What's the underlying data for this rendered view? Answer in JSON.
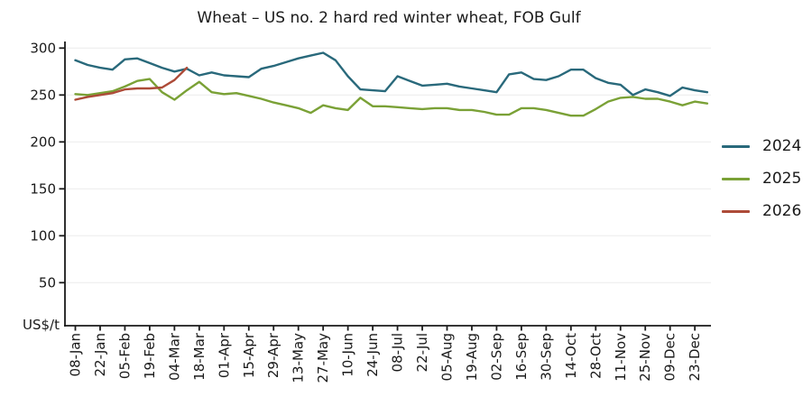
{
  "y_axis_unit_label": "US$/t",
  "colors": {
    "axis": "#1a1a1a",
    "grid": "#f0f0f0",
    "background": "#ffffff",
    "text": "#1a1a1a"
  },
  "chart_data": {
    "type": "line",
    "title": "Wheat – US no. 2 hard red winter wheat, FOB Gulf",
    "ylabel": "US$/t",
    "yticks": [
      50,
      100,
      150,
      200,
      250,
      300
    ],
    "ylim": [
      0,
      307
    ],
    "grid": "horizontal light gridlines at y-ticks",
    "legend_position": "right",
    "x_frequency": "weekly data points, one labeled tick every 2 weeks",
    "x_tick_labels": [
      "08-Jan",
      "22-Jan",
      "05-Feb",
      "19-Feb",
      "04-Mar",
      "18-Mar",
      "01-Apr",
      "15-Apr",
      "29-Apr",
      "13-May",
      "27-May",
      "10-Jun",
      "24-Jun",
      "08-Jul",
      "22-Jul",
      "05-Aug",
      "19-Aug",
      "02-Sep",
      "16-Sep",
      "30-Sep",
      "14-Oct",
      "28-Oct",
      "11-Nov",
      "25-Nov",
      "09-Dec",
      "23-Dec"
    ],
    "series": [
      {
        "name": "2024",
        "color": "#29697b",
        "values": [
          287,
          282,
          279,
          277,
          288,
          289,
          284,
          279,
          275,
          278,
          271,
          274,
          271,
          270,
          269,
          278,
          281,
          285,
          289,
          292,
          295,
          287,
          270,
          256,
          255,
          254,
          270,
          265,
          260,
          261,
          262,
          259,
          257,
          255,
          253,
          272,
          274,
          267,
          266,
          270,
          277,
          277,
          268,
          263,
          261,
          250,
          256,
          253,
          249,
          258,
          255,
          253
        ]
      },
      {
        "name": "2025",
        "color": "#7aa136",
        "values": [
          251,
          250,
          252,
          254,
          259,
          265,
          267,
          253,
          245,
          255,
          264,
          253,
          251,
          252,
          249,
          246,
          242,
          239,
          236,
          231,
          239,
          236,
          234,
          247,
          238,
          238,
          237,
          236,
          235,
          236,
          236,
          234,
          234,
          232,
          229,
          229,
          236,
          236,
          234,
          231,
          228,
          228,
          235,
          243,
          247,
          248,
          246,
          246,
          243,
          239,
          243,
          241
        ]
      },
      {
        "name": "2026",
        "color": "#ad4b38",
        "values": [
          245,
          248,
          250,
          252,
          256,
          257,
          257,
          258,
          266,
          279
        ]
      }
    ]
  }
}
